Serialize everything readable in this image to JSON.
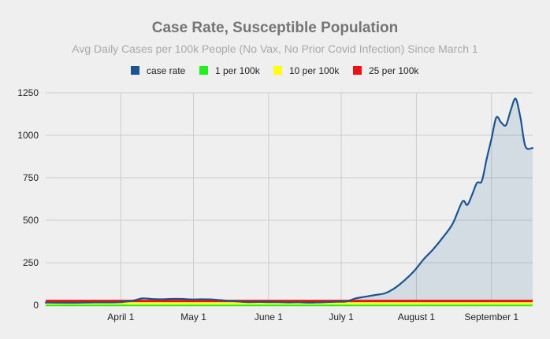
{
  "chart_data": {
    "type": "area",
    "title": "Case Rate, Susceptible Population",
    "subtitle": "Avg Daily Cases per 100k People (No Vax, No Prior Covid Infection) Since March 1",
    "xlabel": "",
    "ylabel": "",
    "ylim": [
      0,
      1250
    ],
    "y_ticks": [
      0,
      250,
      500,
      750,
      1000,
      1250
    ],
    "y_tick_labels": [
      "0",
      "250",
      "500",
      "750",
      "1000",
      "1250"
    ],
    "x_range_days": [
      0,
      201
    ],
    "x_ticks_days": [
      31,
      61,
      92,
      122,
      153,
      184
    ],
    "x_tick_labels": [
      "April 1",
      "May 1",
      "June 1",
      "July 1",
      "August 1",
      "September 1"
    ],
    "grid": true,
    "legend": {
      "position": "top",
      "entries": [
        {
          "name": "case rate",
          "color": "#1a5591"
        },
        {
          "name": "1 per 100k",
          "color": "#22ee22"
        },
        {
          "name": "10 per 100k",
          "color": "#ffff11"
        },
        {
          "name": "25 per 100k",
          "color": "#ee1111"
        }
      ]
    },
    "series": [
      {
        "name": "case rate",
        "color": "#1a5591",
        "fill": "rgba(26,85,145,0.13)",
        "x": [
          0,
          10,
          20,
          30,
          36,
          40,
          44,
          48,
          52,
          56,
          60,
          64,
          68,
          72,
          76,
          80,
          84,
          88,
          92,
          96,
          100,
          104,
          108,
          112,
          116,
          120,
          124,
          128,
          132,
          136,
          140,
          144,
          148,
          152,
          156,
          160,
          164,
          168,
          172,
          174,
          176,
          178,
          180,
          182,
          184,
          186,
          188,
          190,
          192,
          194,
          196,
          198,
          201
        ],
        "values": [
          15,
          14,
          16,
          17,
          27,
          40,
          36,
          35,
          37,
          37,
          34,
          35,
          34,
          30,
          25,
          21,
          18,
          19,
          18,
          18,
          16,
          17,
          15,
          16,
          18,
          20,
          22,
          40,
          50,
          60,
          70,
          100,
          145,
          200,
          270,
          330,
          400,
          480,
          610,
          590,
          650,
          720,
          730,
          860,
          980,
          1105,
          1075,
          1060,
          1150,
          1215,
          1100,
          935,
          925
        ]
      },
      {
        "name": "1 per 100k",
        "color": "#22ee22",
        "constant": 1
      },
      {
        "name": "10 per 100k",
        "color": "#ffff11",
        "constant": 10
      },
      {
        "name": "25 per 100k",
        "color": "#ee1111",
        "constant": 25
      }
    ]
  }
}
